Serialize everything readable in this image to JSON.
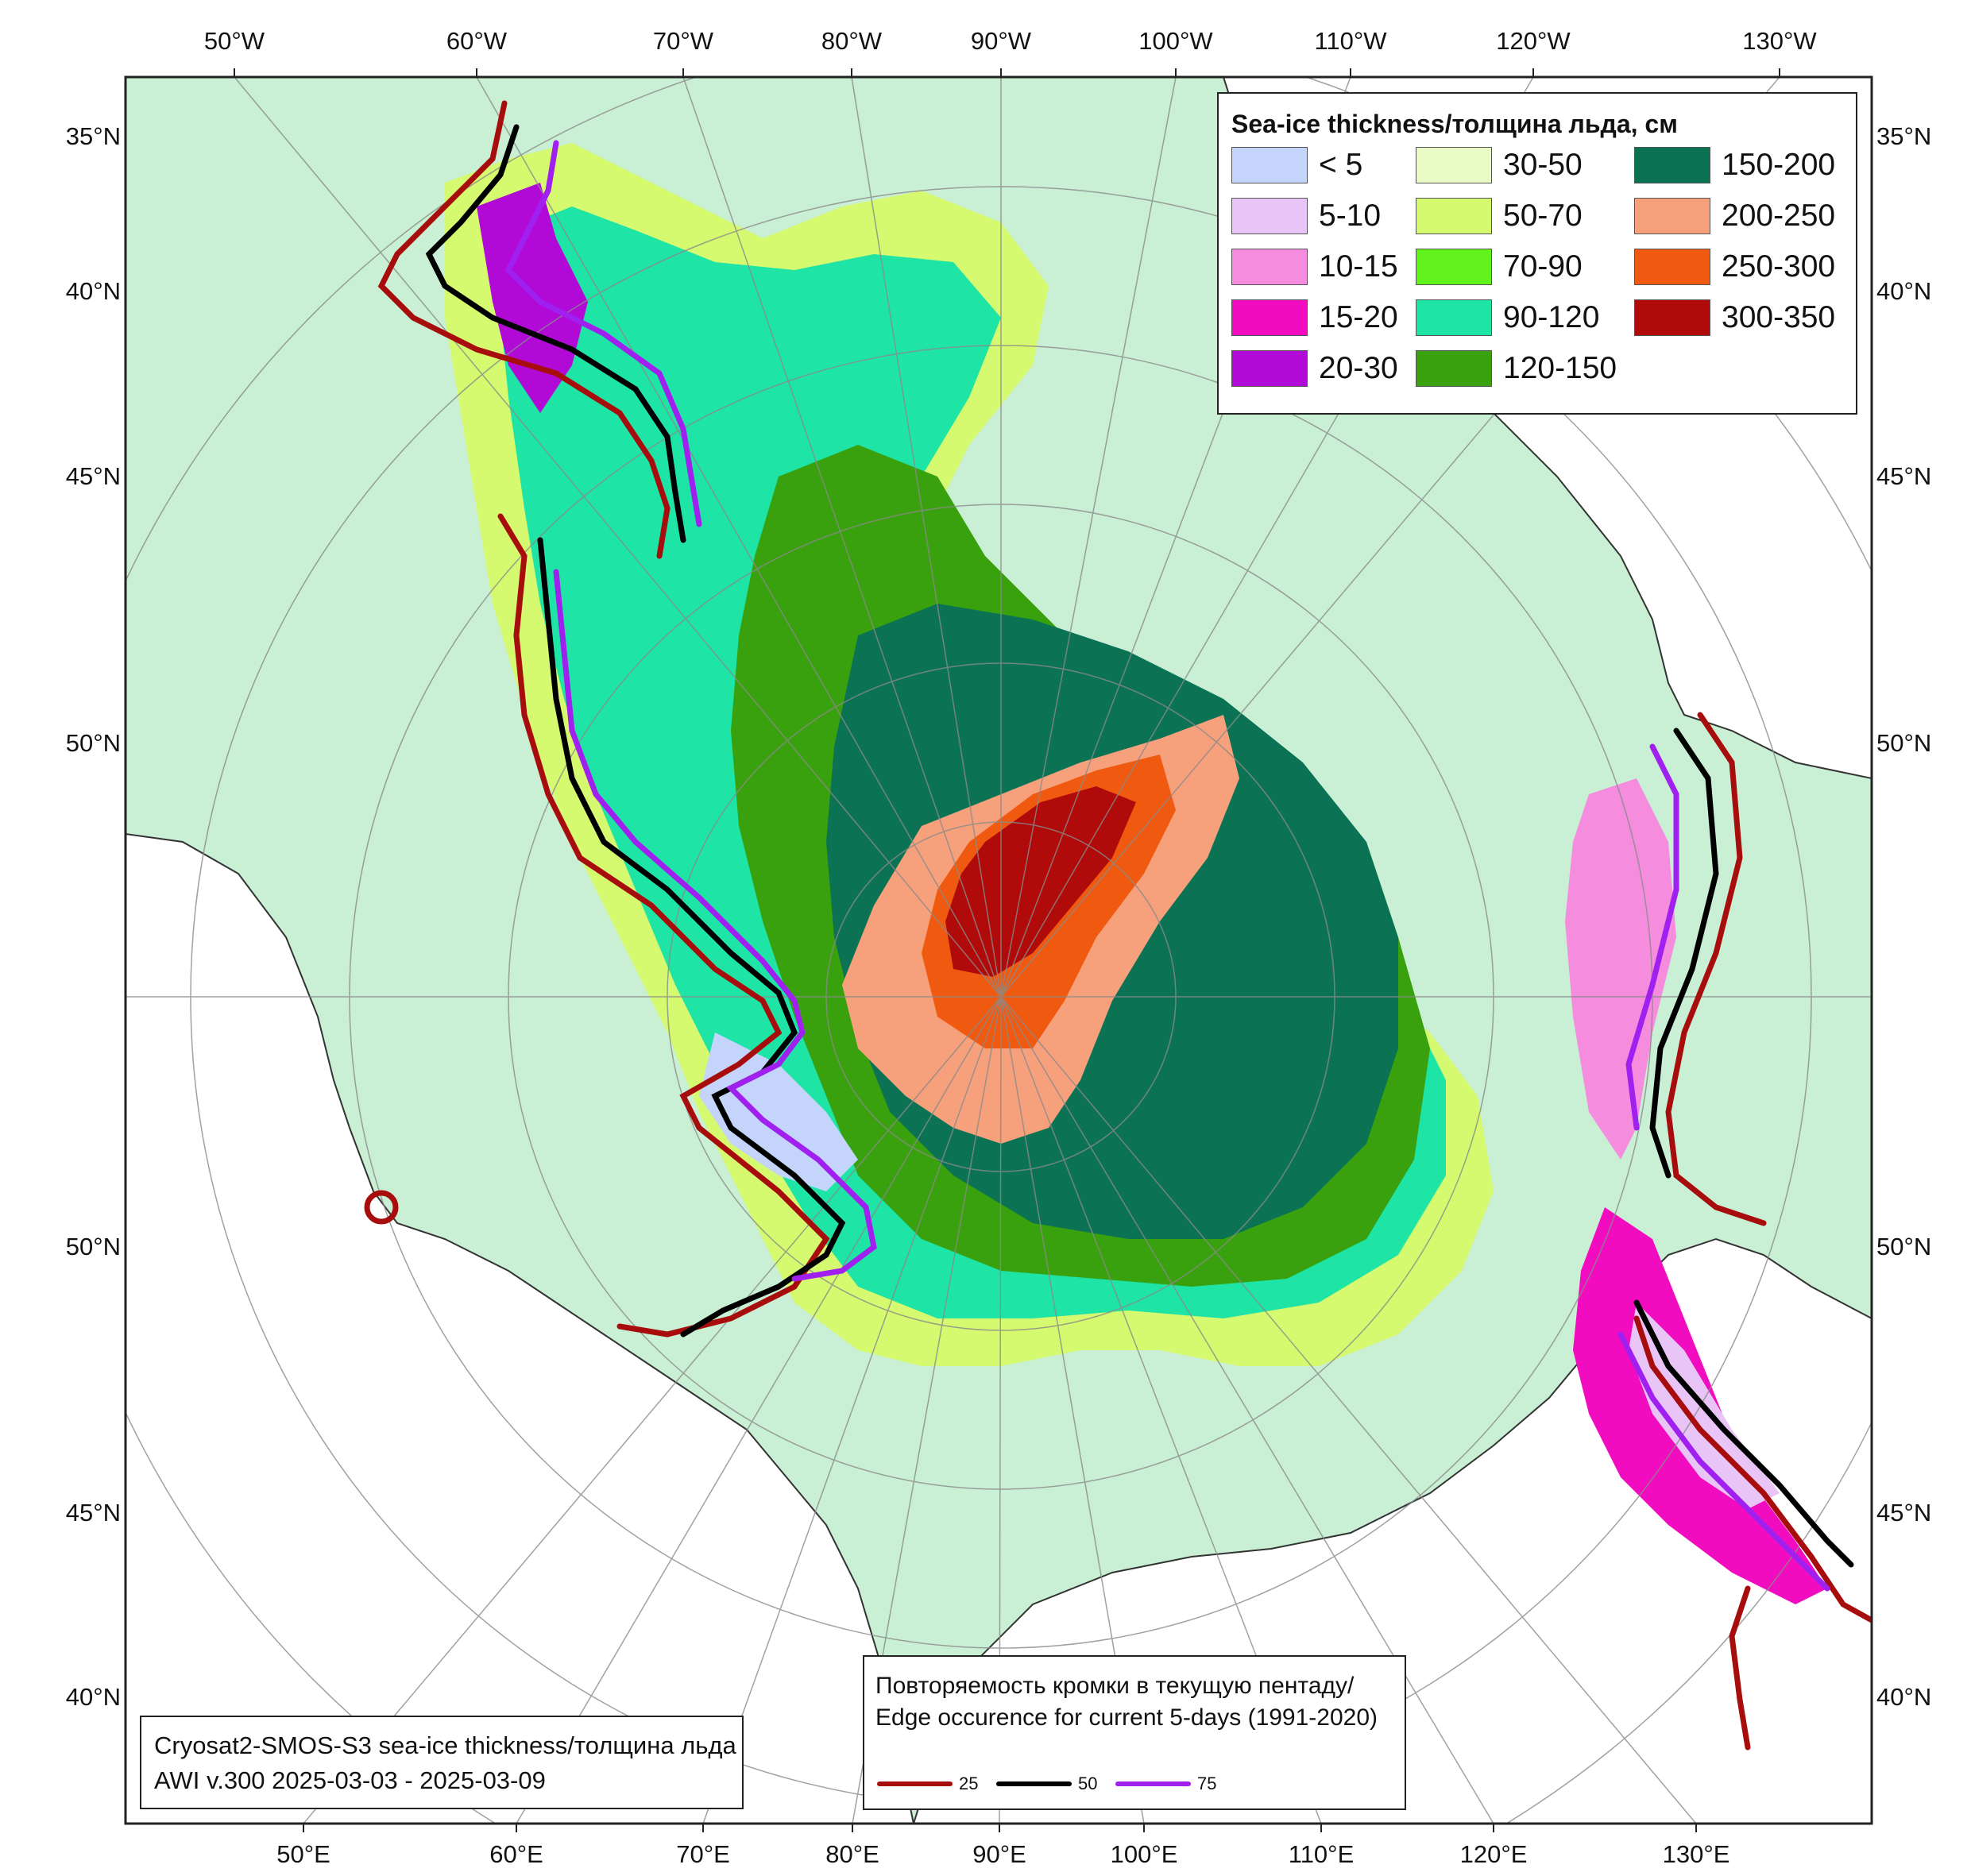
{
  "map": {
    "top_lon_labels": [
      "50°W",
      "60°W",
      "70°W",
      "80°W",
      "90°W",
      "100°W",
      "110°W",
      "120°W",
      "130°W"
    ],
    "bottom_lon_labels": [
      "50°E",
      "60°E",
      "70°E",
      "80°E",
      "90°E",
      "100°E",
      "110°E",
      "120°E",
      "130°E"
    ],
    "left_lat_labels": [
      "35°N",
      "40°N",
      "45°N",
      "50°N",
      "50°N",
      "45°N",
      "40°N"
    ],
    "right_lat_labels": [
      "35°N",
      "40°N",
      "45°N",
      "50°N",
      "50°N",
      "45°N",
      "40°N"
    ],
    "colors": {
      "ocean": "#c9efd4",
      "land": "#ffffff",
      "grid": "#8a8a8a",
      "frame": "#222222"
    }
  },
  "legend": {
    "title": "Sea-ice thickness/толщина льда, см",
    "items": [
      {
        "label": "< 5",
        "color": "#c4d4fb"
      },
      {
        "label": "5-10",
        "color": "#e9c4f6"
      },
      {
        "label": "10-15",
        "color": "#f58cdd"
      },
      {
        "label": "15-20",
        "color": "#f20cc0"
      },
      {
        "label": "20-30",
        "color": "#b20ad6"
      },
      {
        "label": "30-50",
        "color": "#eafcc5"
      },
      {
        "label": "50-70",
        "color": "#d5f96f"
      },
      {
        "label": "70-90",
        "color": "#62f31c"
      },
      {
        "label": "90-120",
        "color": "#1ee4a6"
      },
      {
        "label": "120-150",
        "color": "#3aa10e"
      },
      {
        "label": "150-200",
        "color": "#0b7354"
      },
      {
        "label": "200-250",
        "color": "#f6a07c"
      },
      {
        "label": "250-300",
        "color": "#f05a10"
      },
      {
        "label": "300-350",
        "color": "#b00a0a"
      }
    ]
  },
  "edge_legend": {
    "title_line1": "Повторяемость кромки в текущую пентаду/",
    "title_line2": "Edge occurence for current 5-days (1991-2020)",
    "items": [
      {
        "label": "25",
        "color": "#a80d0d"
      },
      {
        "label": "50",
        "color": "#000000"
      },
      {
        "label": "75",
        "color": "#a020f0"
      }
    ]
  },
  "credit": {
    "line1": "Cryosat2-SMOS-S3 sea-ice thickness/толщина льда",
    "line2": "AWI v.300 2025-03-03 - 2025-03-09"
  }
}
